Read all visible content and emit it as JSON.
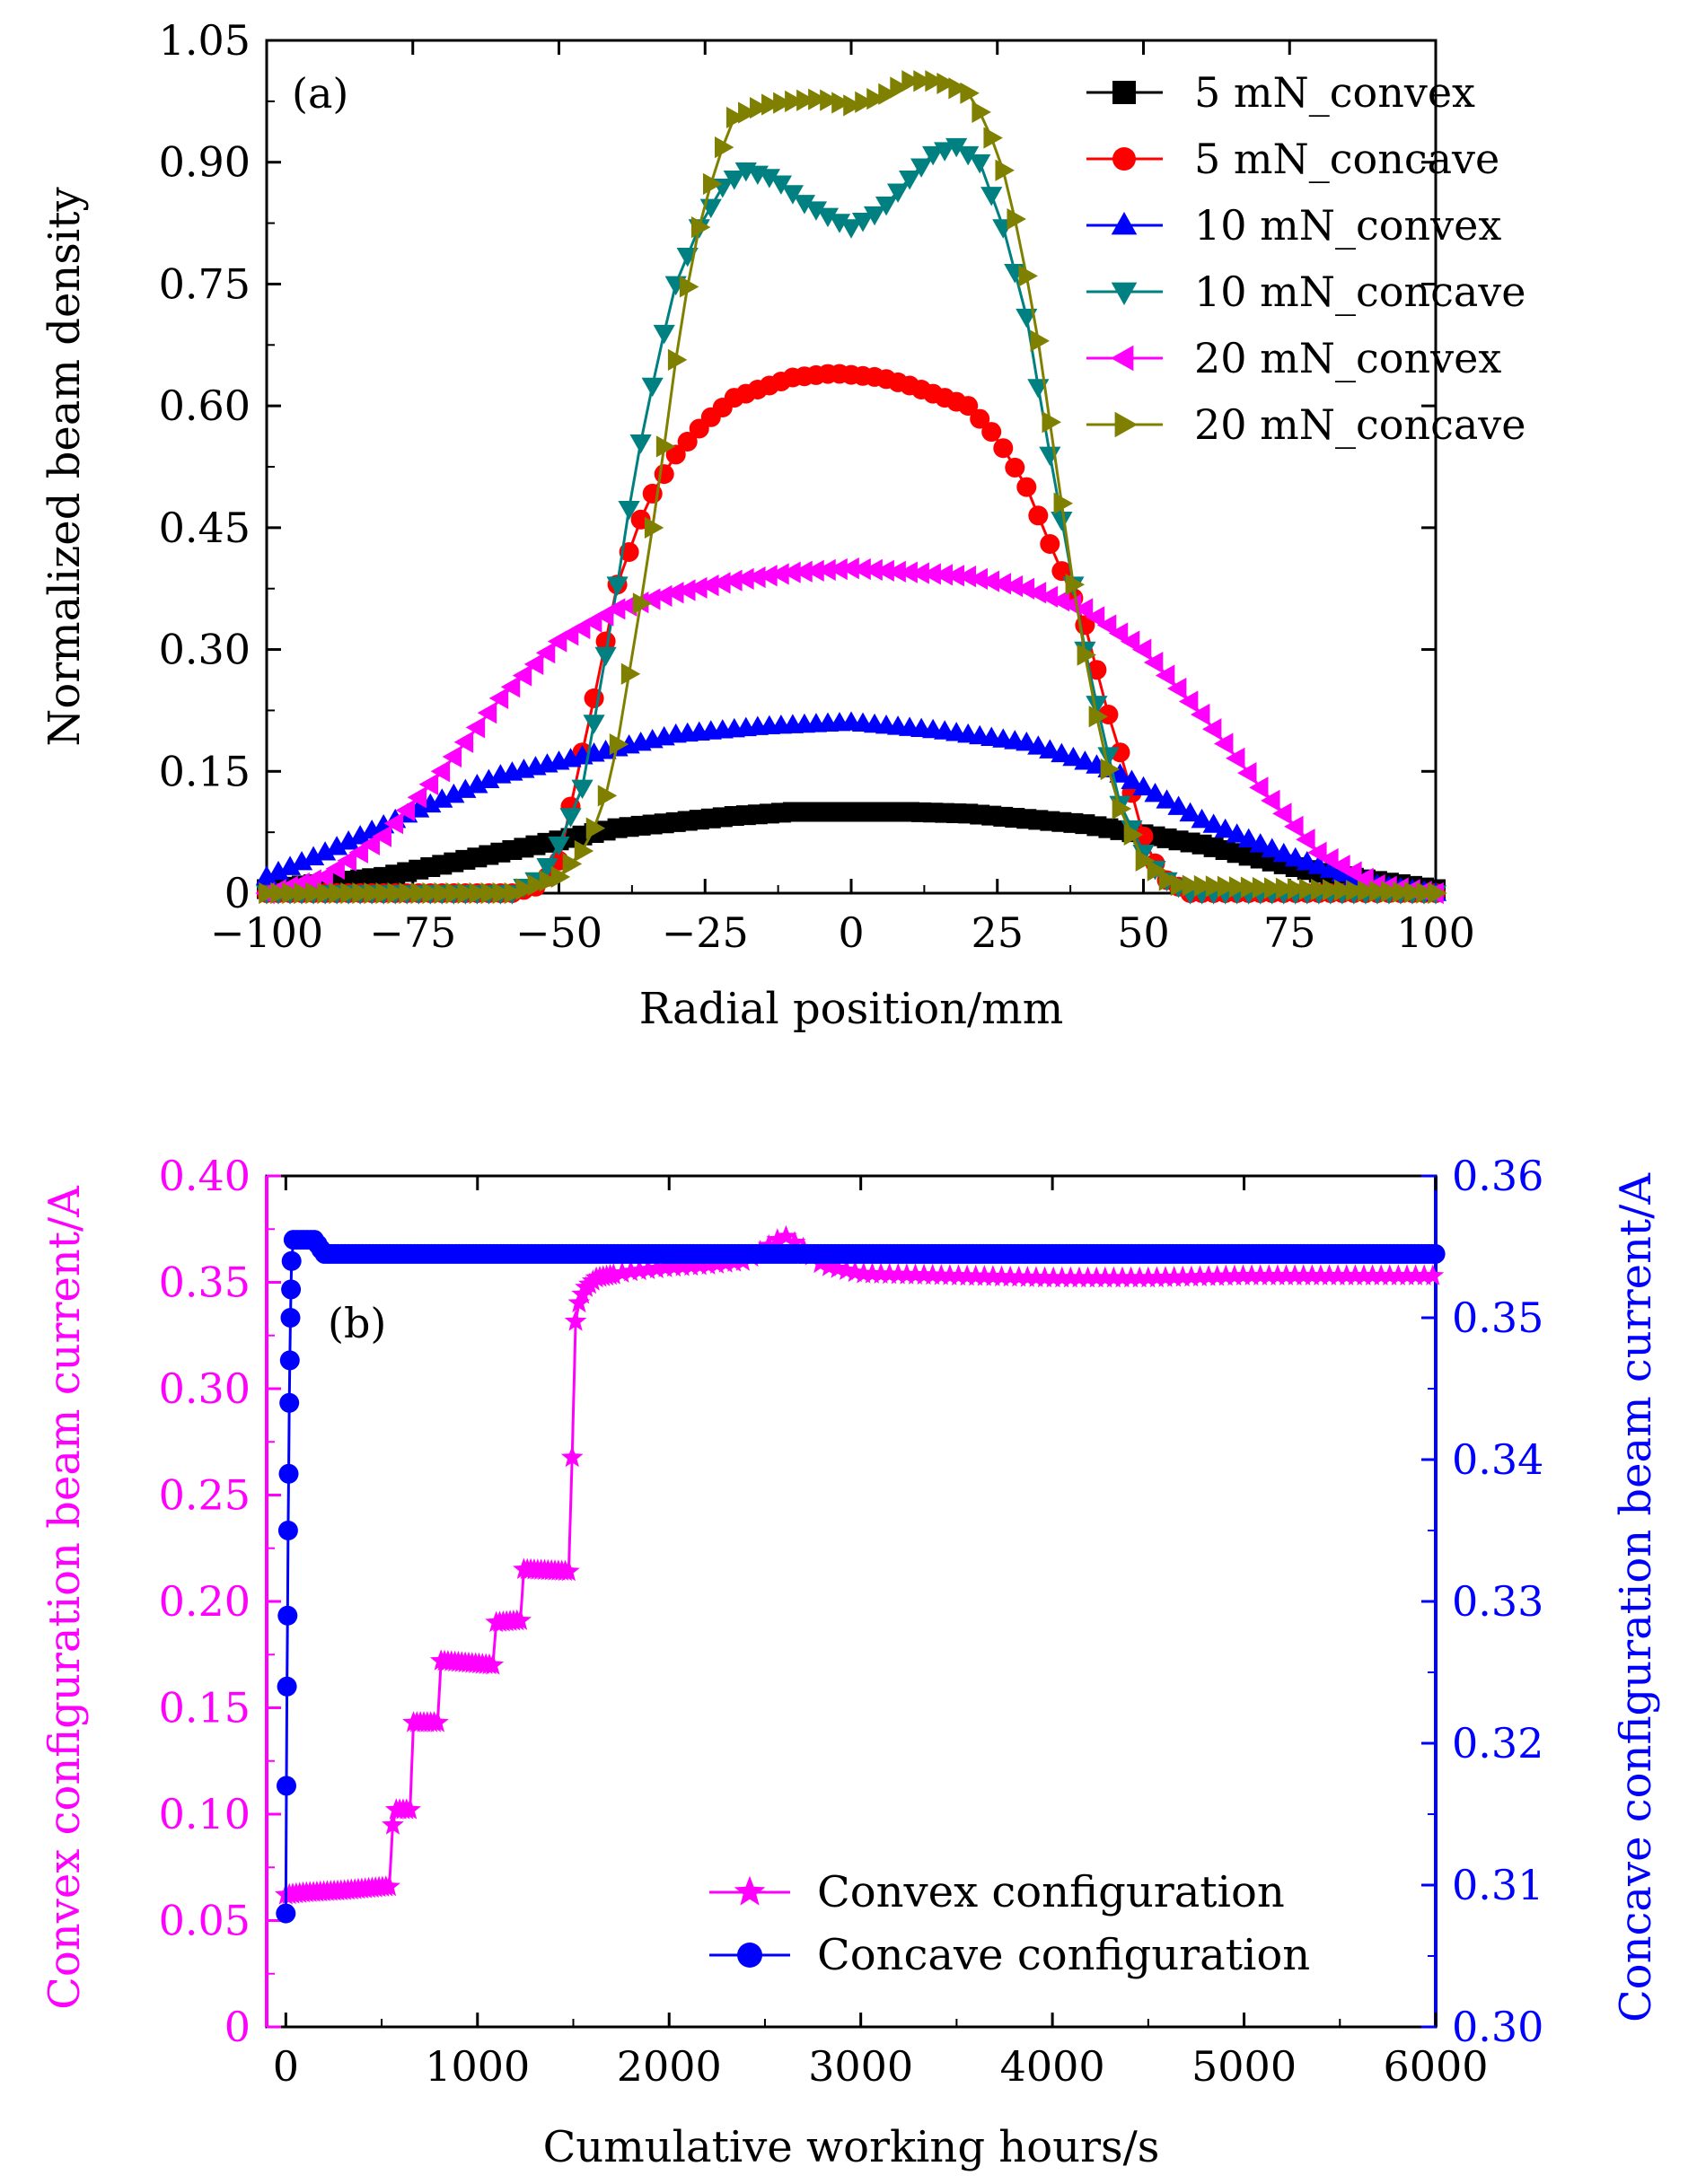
{
  "colors": {
    "black": "#000000",
    "red": "#ff0000",
    "blue": "#0000ff",
    "teal": "#008080",
    "magenta": "#ff00ff",
    "olive": "#808000"
  },
  "chart_data": [
    {
      "type": "line",
      "panel_label": "(a)",
      "xlabel": "Radial position/mm",
      "ylabel": "Normalized beam density",
      "xlim": [
        -100,
        100
      ],
      "ylim": [
        0,
        1.05
      ],
      "xticks": [
        -100,
        -75,
        -50,
        -25,
        0,
        25,
        50,
        75,
        100
      ],
      "xtick_labels": [
        "−100",
        "−75",
        "−50",
        "−25",
        "0",
        "25",
        "50",
        "75",
        "100"
      ],
      "yticks": [
        0,
        0.15,
        0.3,
        0.45,
        0.6,
        0.75,
        0.9,
        1.05
      ],
      "ytick_labels": [
        "0",
        "0.15",
        "0.30",
        "0.45",
        "0.60",
        "0.75",
        "0.90",
        "1.05"
      ],
      "legend_position": "top-right",
      "series": [
        {
          "name": "5 mN_convex",
          "color": "#000000",
          "marker": "square",
          "step": 2,
          "x": [
            -100,
            -80,
            -60,
            -40,
            -20,
            -10,
            0,
            10,
            20,
            40,
            60,
            80,
            100
          ],
          "y": [
            0.005,
            0.02,
            0.05,
            0.08,
            0.095,
            0.1,
            0.1,
            0.1,
            0.098,
            0.085,
            0.06,
            0.025,
            0.005
          ]
        },
        {
          "name": "5 mN_concave",
          "color": "#ff0000",
          "marker": "circle",
          "step": 2,
          "x": [
            -100,
            -58,
            -53,
            -50,
            -47,
            -44,
            -40,
            -35,
            -30,
            -25,
            -20,
            -10,
            -3,
            5,
            10,
            20,
            25,
            30,
            34,
            40,
            44,
            47,
            50,
            53,
            58,
            100
          ],
          "y": [
            0,
            0,
            0.01,
            0.04,
            0.14,
            0.24,
            0.38,
            0.48,
            0.54,
            0.58,
            0.61,
            0.635,
            0.64,
            0.635,
            0.625,
            0.6,
            0.56,
            0.5,
            0.43,
            0.33,
            0.22,
            0.15,
            0.07,
            0.02,
            0,
            0
          ]
        },
        {
          "name": "10 mN_convex",
          "color": "#0000ff",
          "marker": "triangle-up",
          "step": 2,
          "x": [
            -100,
            -90,
            -75,
            -60,
            -45,
            -30,
            -15,
            0,
            15,
            30,
            45,
            60,
            75,
            90,
            100
          ],
          "y": [
            0.02,
            0.05,
            0.1,
            0.145,
            0.17,
            0.195,
            0.205,
            0.21,
            0.2,
            0.185,
            0.15,
            0.09,
            0.045,
            0.01,
            0
          ]
        },
        {
          "name": "10 mN_concave",
          "color": "#008080",
          "marker": "triangle-down",
          "step": 2,
          "x": [
            -100,
            -58,
            -53,
            -50,
            -46,
            -43,
            -40,
            -37,
            -33,
            -30,
            -26,
            -22,
            -18,
            -13,
            -8,
            -3,
            0,
            5,
            10,
            14,
            18,
            22,
            26,
            30,
            33,
            37,
            40,
            43,
            46,
            50,
            53,
            58,
            100
          ],
          "y": [
            0,
            0,
            0.02,
            0.06,
            0.13,
            0.25,
            0.38,
            0.52,
            0.66,
            0.75,
            0.82,
            0.87,
            0.89,
            0.88,
            0.85,
            0.83,
            0.82,
            0.84,
            0.88,
            0.91,
            0.92,
            0.9,
            0.82,
            0.71,
            0.58,
            0.42,
            0.3,
            0.2,
            0.11,
            0.05,
            0.02,
            0,
            0
          ]
        },
        {
          "name": "20 mN_convex",
          "color": "#ff00ff",
          "marker": "triangle-left",
          "step": 2,
          "x": [
            -100,
            -90,
            -80,
            -70,
            -60,
            -50,
            -40,
            -30,
            -20,
            -10,
            0,
            10,
            20,
            30,
            40,
            50,
            60,
            70,
            80,
            90,
            100
          ],
          "y": [
            0,
            0.02,
            0.07,
            0.15,
            0.24,
            0.31,
            0.35,
            0.37,
            0.385,
            0.395,
            0.4,
            0.395,
            0.39,
            0.375,
            0.35,
            0.3,
            0.22,
            0.13,
            0.05,
            0.01,
            0
          ]
        },
        {
          "name": "20 mN_concave",
          "color": "#808000",
          "marker": "triangle-right",
          "step": 2,
          "x": [
            -100,
            -58,
            -50,
            -45,
            -41,
            -38,
            -35,
            -32,
            -29,
            -26,
            -23,
            -20,
            -15,
            -10,
            -5,
            0,
            5,
            10,
            15,
            20,
            23,
            26,
            29,
            32,
            35,
            38,
            41,
            45,
            50,
            55,
            100
          ],
          "y": [
            0,
            0,
            0.02,
            0.06,
            0.14,
            0.27,
            0.4,
            0.55,
            0.71,
            0.82,
            0.9,
            0.955,
            0.97,
            0.975,
            0.978,
            0.97,
            0.98,
            1.0,
            1.0,
            0.985,
            0.95,
            0.89,
            0.8,
            0.68,
            0.53,
            0.38,
            0.25,
            0.12,
            0.04,
            0.01,
            0
          ]
        }
      ]
    },
    {
      "type": "line",
      "panel_label": "(b)",
      "xlabel": "Cumulative working hours/s",
      "ylabel_left": "Convex configuration beam current/A",
      "ylabel_right": "Concave configuration beam current/A",
      "xlim": [
        -100,
        6000
      ],
      "ylim_left": [
        0,
        0.4
      ],
      "ylim_right": [
        0.3,
        0.36
      ],
      "xticks": [
        0,
        1000,
        2000,
        3000,
        4000,
        5000,
        6000
      ],
      "xtick_labels": [
        "0",
        "1000",
        "2000",
        "3000",
        "4000",
        "5000",
        "6000"
      ],
      "yticks_left": [
        0,
        0.05,
        0.1,
        0.15,
        0.2,
        0.25,
        0.3,
        0.35,
        0.4
      ],
      "ytick_labels_left": [
        "0",
        "0.05",
        "0.10",
        "0.15",
        "0.20",
        "0.25",
        "0.30",
        "0.35",
        "0.40"
      ],
      "yticks_right": [
        0.3,
        0.31,
        0.32,
        0.33,
        0.34,
        0.35,
        0.36
      ],
      "ytick_labels_right": [
        "0.30",
        "0.31",
        "0.32",
        "0.33",
        "0.34",
        "0.35",
        "0.36"
      ],
      "legend_position": "bottom-right",
      "series": [
        {
          "name": "Convex configuration",
          "color": "#ff00ff",
          "marker": "star",
          "axis": "left",
          "step": 1,
          "x": [
            0,
            100,
            300,
            550,
            560,
            650,
            660,
            800,
            810,
            1080,
            1090,
            1230,
            1240,
            1480,
            1490,
            1500,
            1510,
            1520,
            1560,
            1620,
            1800,
            2000,
            2200,
            2400,
            2600,
            2700,
            2800,
            3000,
            3500,
            4000,
            4500,
            5000,
            5500,
            6000
          ],
          "y": [
            0.062,
            0.063,
            0.064,
            0.066,
            0.102,
            0.102,
            0.143,
            0.143,
            0.172,
            0.17,
            0.19,
            0.191,
            0.215,
            0.214,
            0.242,
            0.306,
            0.33,
            0.338,
            0.347,
            0.352,
            0.355,
            0.357,
            0.358,
            0.36,
            0.372,
            0.366,
            0.358,
            0.354,
            0.353,
            0.352,
            0.352,
            0.353,
            0.353,
            0.353
          ]
        },
        {
          "name": "Concave configuration",
          "color": "#0000ff",
          "marker": "circle",
          "axis": "right",
          "step": 1,
          "x": [
            0,
            3,
            6,
            9,
            12,
            15,
            18,
            21,
            24,
            27,
            30,
            40,
            60,
            100,
            150,
            200,
            400,
            1000,
            2000,
            3000,
            4000,
            5000,
            6000
          ],
          "y": [
            0.308,
            0.317,
            0.324,
            0.329,
            0.335,
            0.339,
            0.344,
            0.347,
            0.35,
            0.352,
            0.354,
            0.3555,
            0.3555,
            0.3555,
            0.3555,
            0.3545,
            0.3545,
            0.3545,
            0.3545,
            0.3545,
            0.3545,
            0.3545,
            0.3545
          ]
        }
      ]
    }
  ]
}
